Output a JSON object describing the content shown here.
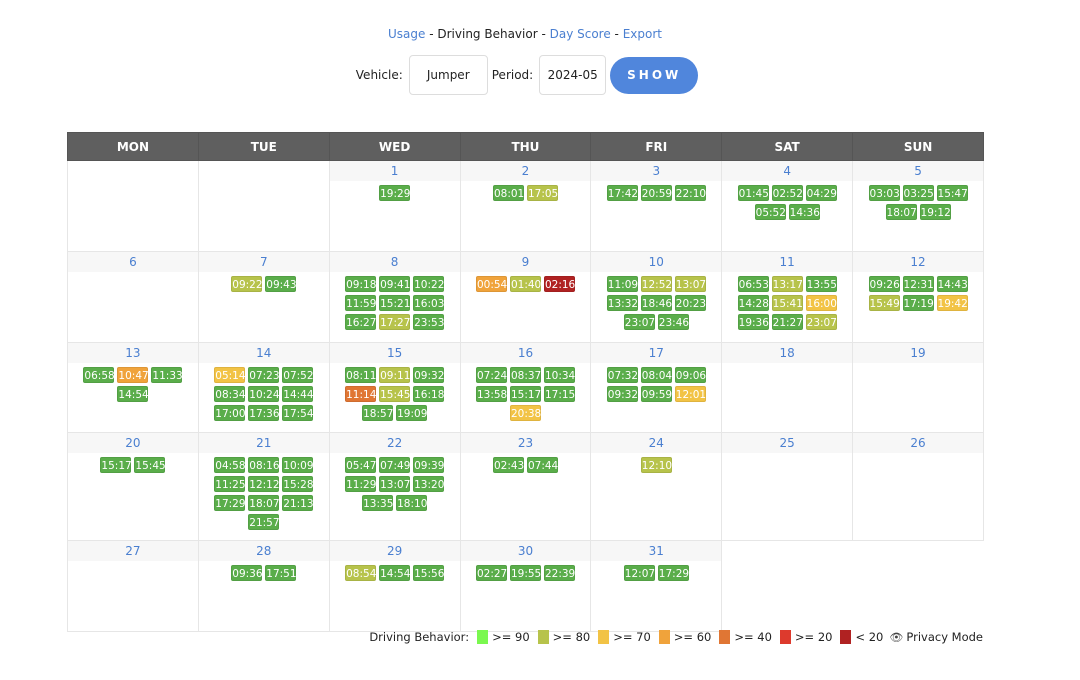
{
  "nav": {
    "usage": "Usage",
    "sep1": " - ",
    "current": "Driving Behavior",
    "sep2": " - ",
    "day_score": "Day Score",
    "sep3": " - ",
    "export": "Export"
  },
  "form": {
    "vehicle_label": "Vehicle:",
    "vehicle_value": "Jumper",
    "period_label": "Period:",
    "period_value": "2024-05",
    "show_label": "SHOW"
  },
  "weekdays": [
    "MON",
    "TUE",
    "WED",
    "THU",
    "FRI",
    "SAT",
    "SUN"
  ],
  "colors": {
    "g": "#5aad4a",
    "y": "#b7c34b",
    "a": "#f2c345",
    "o": "#f0a33b",
    "d": "#e07634",
    "r": "#dd3a2d",
    "x": "#b02222",
    "green90": "#7af84f"
  },
  "weeks": [
    [
      null,
      null,
      {
        "day": "1",
        "trips": [
          [
            "19:29",
            "g"
          ]
        ]
      },
      {
        "day": "2",
        "trips": [
          [
            "08:01",
            "g"
          ],
          [
            "17:05",
            "y"
          ]
        ]
      },
      {
        "day": "3",
        "trips": [
          [
            "17:42",
            "g"
          ],
          [
            "20:59",
            "g"
          ],
          [
            "22:10",
            "g"
          ]
        ]
      },
      {
        "day": "4",
        "trips": [
          [
            "01:45",
            "g"
          ],
          [
            "02:52",
            "g"
          ],
          [
            "04:29",
            "g"
          ],
          [
            "05:52",
            "g"
          ],
          [
            "14:36",
            "g"
          ]
        ]
      },
      {
        "day": "5",
        "trips": [
          [
            "03:03",
            "g"
          ],
          [
            "03:25",
            "g"
          ],
          [
            "15:47",
            "g"
          ],
          [
            "18:07",
            "g"
          ],
          [
            "19:12",
            "g"
          ]
        ]
      }
    ],
    [
      {
        "day": "6",
        "trips": []
      },
      {
        "day": "7",
        "trips": [
          [
            "09:22",
            "y"
          ],
          [
            "09:43",
            "g"
          ]
        ]
      },
      {
        "day": "8",
        "trips": [
          [
            "09:18",
            "g"
          ],
          [
            "09:41",
            "g"
          ],
          [
            "10:22",
            "g"
          ],
          [
            "11:59",
            "g"
          ],
          [
            "15:21",
            "g"
          ],
          [
            "16:03",
            "g"
          ],
          [
            "16:27",
            "g"
          ],
          [
            "17:27",
            "y"
          ],
          [
            "23:53",
            "g"
          ]
        ]
      },
      {
        "day": "9",
        "trips": [
          [
            "00:54",
            "o"
          ],
          [
            "01:40",
            "y"
          ],
          [
            "02:16",
            "x"
          ]
        ]
      },
      {
        "day": "10",
        "trips": [
          [
            "11:09",
            "g"
          ],
          [
            "12:52",
            "y"
          ],
          [
            "13:07",
            "y"
          ],
          [
            "13:32",
            "g"
          ],
          [
            "18:46",
            "g"
          ],
          [
            "20:23",
            "g"
          ],
          [
            "23:07",
            "g"
          ],
          [
            "23:46",
            "g"
          ]
        ]
      },
      {
        "day": "11",
        "trips": [
          [
            "06:53",
            "g"
          ],
          [
            "13:17",
            "y"
          ],
          [
            "13:55",
            "g"
          ],
          [
            "14:28",
            "g"
          ],
          [
            "15:41",
            "y"
          ],
          [
            "16:00",
            "a"
          ],
          [
            "19:36",
            "g"
          ],
          [
            "21:27",
            "g"
          ],
          [
            "23:07",
            "y"
          ]
        ]
      },
      {
        "day": "12",
        "trips": [
          [
            "09:26",
            "g"
          ],
          [
            "12:31",
            "g"
          ],
          [
            "14:43",
            "g"
          ],
          [
            "15:49",
            "y"
          ],
          [
            "17:19",
            "g"
          ],
          [
            "19:42",
            "a"
          ]
        ]
      }
    ],
    [
      {
        "day": "13",
        "trips": [
          [
            "06:58",
            "g"
          ],
          [
            "10:47",
            "o"
          ],
          [
            "11:33",
            "g"
          ],
          [
            "14:54",
            "g"
          ]
        ]
      },
      {
        "day": "14",
        "trips": [
          [
            "05:14",
            "a"
          ],
          [
            "07:23",
            "g"
          ],
          [
            "07:52",
            "g"
          ],
          [
            "08:34",
            "g"
          ],
          [
            "10:24",
            "g"
          ],
          [
            "14:44",
            "g"
          ],
          [
            "17:00",
            "g"
          ],
          [
            "17:36",
            "g"
          ],
          [
            "17:54",
            "g"
          ]
        ]
      },
      {
        "day": "15",
        "trips": [
          [
            "08:11",
            "g"
          ],
          [
            "09:11",
            "y"
          ],
          [
            "09:32",
            "g"
          ],
          [
            "11:14",
            "d"
          ],
          [
            "15:45",
            "y"
          ],
          [
            "16:18",
            "g"
          ],
          [
            "18:57",
            "g"
          ],
          [
            "19:09",
            "g"
          ]
        ]
      },
      {
        "day": "16",
        "trips": [
          [
            "07:24",
            "g"
          ],
          [
            "08:37",
            "g"
          ],
          [
            "10:34",
            "g"
          ],
          [
            "13:58",
            "g"
          ],
          [
            "15:17",
            "g"
          ],
          [
            "17:15",
            "g"
          ],
          [
            "20:38",
            "a"
          ]
        ]
      },
      {
        "day": "17",
        "trips": [
          [
            "07:32",
            "g"
          ],
          [
            "08:04",
            "g"
          ],
          [
            "09:06",
            "g"
          ],
          [
            "09:32",
            "g"
          ],
          [
            "09:59",
            "g"
          ],
          [
            "12:01",
            "a"
          ]
        ]
      },
      {
        "day": "18",
        "trips": []
      },
      {
        "day": "19",
        "trips": []
      }
    ],
    [
      {
        "day": "20",
        "trips": [
          [
            "15:17",
            "g"
          ],
          [
            "15:45",
            "g"
          ]
        ]
      },
      {
        "day": "21",
        "trips": [
          [
            "04:58",
            "g"
          ],
          [
            "08:16",
            "g"
          ],
          [
            "10:09",
            "g"
          ],
          [
            "11:25",
            "g"
          ],
          [
            "12:12",
            "g"
          ],
          [
            "15:28",
            "g"
          ],
          [
            "17:29",
            "g"
          ],
          [
            "18:07",
            "g"
          ],
          [
            "21:13",
            "g"
          ],
          [
            "21:57",
            "g"
          ]
        ]
      },
      {
        "day": "22",
        "trips": [
          [
            "05:47",
            "g"
          ],
          [
            "07:49",
            "g"
          ],
          [
            "09:39",
            "g"
          ],
          [
            "11:29",
            "g"
          ],
          [
            "13:07",
            "g"
          ],
          [
            "13:20",
            "g"
          ],
          [
            "13:35",
            "g"
          ],
          [
            "18:10",
            "g"
          ]
        ]
      },
      {
        "day": "23",
        "trips": [
          [
            "02:43",
            "g"
          ],
          [
            "07:44",
            "g"
          ]
        ]
      },
      {
        "day": "24",
        "trips": [
          [
            "12:10",
            "y"
          ]
        ]
      },
      {
        "day": "25",
        "trips": []
      },
      {
        "day": "26",
        "trips": []
      }
    ],
    [
      {
        "day": "27",
        "trips": []
      },
      {
        "day": "28",
        "trips": [
          [
            "09:36",
            "g"
          ],
          [
            "17:51",
            "g"
          ]
        ]
      },
      {
        "day": "29",
        "trips": [
          [
            "08:54",
            "y"
          ],
          [
            "14:54",
            "g"
          ],
          [
            "15:56",
            "g"
          ]
        ]
      },
      {
        "day": "30",
        "trips": [
          [
            "02:27",
            "g"
          ],
          [
            "19:55",
            "g"
          ],
          [
            "22:39",
            "g"
          ]
        ]
      },
      {
        "day": "31",
        "trips": [
          [
            "12:07",
            "g"
          ],
          [
            "17:29",
            "g"
          ]
        ]
      },
      null,
      null
    ]
  ],
  "legend": {
    "title": "Driving Behavior:",
    "items": [
      {
        "label": ">= 90",
        "color": "#7af84f"
      },
      {
        "label": ">= 80",
        "color": "#b7c34b"
      },
      {
        "label": ">= 70",
        "color": "#f2c345"
      },
      {
        "label": ">= 60",
        "color": "#f0a33b"
      },
      {
        "label": ">= 40",
        "color": "#e07634"
      },
      {
        "label": ">= 20",
        "color": "#dd3a2d"
      },
      {
        "label": "< 20",
        "color": "#b02222"
      }
    ],
    "privacy": "Privacy Mode",
    "privacy_icon": "eye-slash-icon"
  }
}
